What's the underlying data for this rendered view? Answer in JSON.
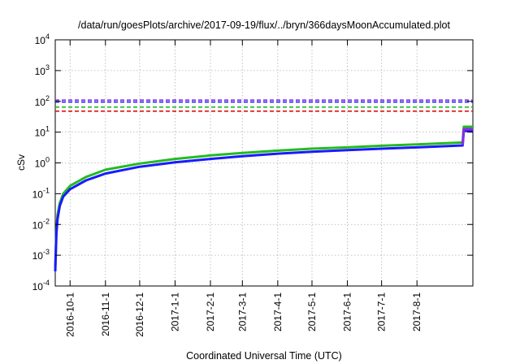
{
  "chart_data": {
    "type": "line",
    "title": "/data/run/goesPlots/archive/2017-09-19/flux/../bryn/366daysMoonAccumulated.plot",
    "xlabel": "Coordinated Universal Time (UTC)",
    "ylabel": "cSv",
    "yscale": "log",
    "ylim": [
      0.0001,
      10000
    ],
    "xlim": [
      "2016-09-18",
      "2017-09-19"
    ],
    "grid": true,
    "legend": "none",
    "y_ticks": [
      {
        "value": 0.0001,
        "base": "10",
        "exp": "-4"
      },
      {
        "value": 0.001,
        "base": "10",
        "exp": "-3"
      },
      {
        "value": 0.01,
        "base": "10",
        "exp": "-2"
      },
      {
        "value": 0.1,
        "base": "10",
        "exp": "-1"
      },
      {
        "value": 1,
        "base": "10",
        "exp": "0"
      },
      {
        "value": 10,
        "base": "10",
        "exp": "1"
      },
      {
        "value": 100,
        "base": "10",
        "exp": "2"
      },
      {
        "value": 1000,
        "base": "10",
        "exp": "3"
      },
      {
        "value": 10000,
        "base": "10",
        "exp": "4"
      }
    ],
    "x_ticks": [
      "2016-10-1",
      "2016-11-1",
      "2016-12-1",
      "2017-1-1",
      "2017-2-1",
      "2017-3-1",
      "2017-4-1",
      "2017-5-1",
      "2017-6-1",
      "2017-7-1",
      "2017-8-1"
    ],
    "thresholds": [
      {
        "value": 110,
        "color": "#8a2be2"
      },
      {
        "value": 95,
        "color": "#1a1aff"
      },
      {
        "value": 65,
        "color": "#22bb22"
      },
      {
        "value": 48,
        "color": "#e01010"
      }
    ],
    "series": [
      {
        "color": "#22bb22",
        "x": [
          "2016-09-18",
          "2016-09-19",
          "2016-09-20",
          "2016-09-22",
          "2016-09-25",
          "2016-10-01",
          "2016-10-15",
          "2016-11-01",
          "2016-12-01",
          "2017-01-01",
          "2017-02-01",
          "2017-03-01",
          "2017-04-01",
          "2017-05-01",
          "2017-06-01",
          "2017-07-01",
          "2017-08-01",
          "2017-09-10",
          "2017-09-11",
          "2017-09-19"
        ],
        "y": [
          0.0004,
          0.006,
          0.02,
          0.05,
          0.1,
          0.18,
          0.35,
          0.6,
          0.95,
          1.35,
          1.75,
          2.1,
          2.5,
          2.9,
          3.2,
          3.6,
          4.0,
          4.6,
          15,
          15
        ]
      },
      {
        "color": "#1a1aff",
        "x": [
          "2016-09-18",
          "2016-09-19",
          "2016-09-20",
          "2016-09-22",
          "2016-09-25",
          "2016-10-01",
          "2016-10-15",
          "2016-11-01",
          "2016-12-01",
          "2017-01-01",
          "2017-02-01",
          "2017-03-01",
          "2017-04-01",
          "2017-05-01",
          "2017-06-01",
          "2017-07-01",
          "2017-08-01",
          "2017-09-10",
          "2017-09-11",
          "2017-09-19"
        ],
        "y": [
          0.0003,
          0.005,
          0.015,
          0.04,
          0.08,
          0.14,
          0.27,
          0.45,
          0.75,
          1.05,
          1.35,
          1.65,
          2.0,
          2.3,
          2.6,
          2.9,
          3.2,
          3.7,
          11,
          11
        ]
      },
      {
        "color": "#8a2be2",
        "x": [
          "2017-09-10",
          "2017-09-11",
          "2017-09-19"
        ],
        "y": [
          3.8,
          12.5,
          12.5
        ]
      }
    ]
  }
}
